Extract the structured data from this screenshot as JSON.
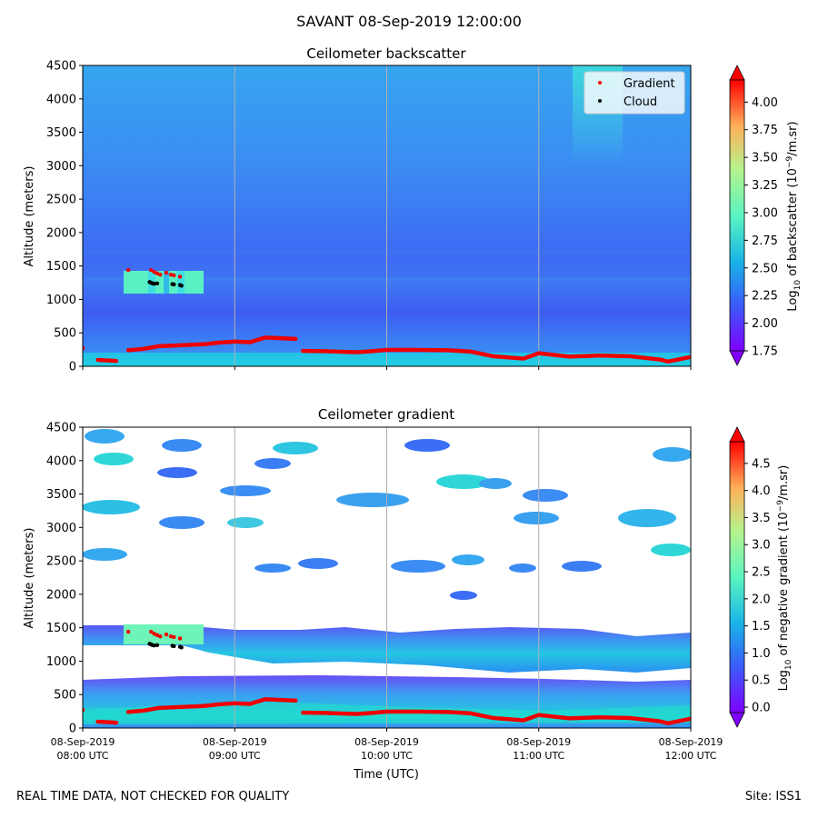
{
  "figure": {
    "suptitle": "SAVANT 08-Sep-2019 12:00:00",
    "footer_left": "REAL TIME DATA, NOT CHECKED FOR QUALITY",
    "footer_right": "Site: ISS1"
  },
  "chart_data": [
    {
      "type": "heatmap",
      "title": "Ceilometer backscatter",
      "ylabel": "Altitude (meters)",
      "xlabel": "",
      "xlim": [
        8.0,
        12.0
      ],
      "ylim": [
        0,
        4500
      ],
      "yticks": [
        0,
        500,
        1000,
        1500,
        2000,
        2500,
        3000,
        3500,
        4000,
        4500
      ],
      "xticks": [
        8,
        9,
        10,
        11,
        12
      ],
      "grid_x": true,
      "colorbar": {
        "label_prefix": "Log",
        "label_sub": "10",
        "label_mid": " of backscatter (10",
        "label_sup": "−9",
        "label_suffix": "/m.sr)",
        "vmin": 1.75,
        "vmax": 4.2,
        "ticks": [
          "1.75",
          "2.00",
          "2.25",
          "2.50",
          "2.75",
          "3.00",
          "3.25",
          "3.50",
          "3.75",
          "4.00"
        ],
        "extend": "both"
      },
      "legend": {
        "placement": "top-right",
        "entries": [
          {
            "label": "Gradient",
            "color": "#ff0000"
          },
          {
            "label": "Cloud",
            "color": "#000000"
          }
        ]
      }
    },
    {
      "type": "heatmap",
      "title": "Ceilometer gradient",
      "ylabel": "Altitude (meters)",
      "xlabel": "Time (UTC)",
      "xlim": [
        8.0,
        12.0
      ],
      "ylim": [
        0,
        4500
      ],
      "yticks": [
        0,
        500,
        1000,
        1500,
        2000,
        2500,
        3000,
        3500,
        4000,
        4500
      ],
      "xticks": [
        8,
        9,
        10,
        11,
        12
      ],
      "xtick_labels": [
        [
          "08-Sep-2019",
          "08:00 UTC"
        ],
        [
          "08-Sep-2019",
          "09:00 UTC"
        ],
        [
          "08-Sep-2019",
          "10:00 UTC"
        ],
        [
          "08-Sep-2019",
          "11:00 UTC"
        ],
        [
          "08-Sep-2019",
          "12:00 UTC"
        ]
      ],
      "grid_x": true,
      "colorbar": {
        "label_prefix": "Log",
        "label_sub": "10",
        "label_mid": " of negative gradient (10",
        "label_sup": "−9",
        "label_suffix": "/m.sr)",
        "vmin": -0.1,
        "vmax": 4.9,
        "ticks": [
          "0.0",
          "0.5",
          "1.0",
          "1.5",
          "2.0",
          "2.5",
          "3.0",
          "3.5",
          "4.0",
          "4.5"
        ],
        "extend": "both"
      }
    }
  ],
  "gradient_series": [
    [
      8.0,
      270
    ],
    [
      8.1,
      95
    ],
    [
      8.22,
      80
    ],
    [
      8.3,
      240
    ],
    [
      8.4,
      260
    ],
    [
      8.5,
      300
    ],
    [
      8.6,
      310
    ],
    [
      8.7,
      320
    ],
    [
      8.8,
      330
    ],
    [
      8.9,
      355
    ],
    [
      9.0,
      370
    ],
    [
      9.1,
      360
    ],
    [
      9.2,
      430
    ],
    [
      9.4,
      410
    ],
    [
      9.45,
      230
    ],
    [
      9.6,
      225
    ],
    [
      9.8,
      210
    ],
    [
      9.9,
      225
    ],
    [
      10.0,
      245
    ],
    [
      10.2,
      245
    ],
    [
      10.4,
      240
    ],
    [
      10.55,
      220
    ],
    [
      10.7,
      150
    ],
    [
      10.9,
      115
    ],
    [
      11.0,
      195
    ],
    [
      11.2,
      145
    ],
    [
      11.4,
      160
    ],
    [
      11.6,
      150
    ],
    [
      11.8,
      100
    ],
    [
      11.85,
      70
    ],
    [
      12.0,
      140
    ]
  ],
  "cloud_points": [
    [
      8.44,
      1260
    ],
    [
      8.45,
      1250
    ],
    [
      8.46,
      1240
    ],
    [
      8.47,
      1235
    ],
    [
      8.49,
      1240
    ],
    [
      8.59,
      1230
    ],
    [
      8.6,
      1225
    ],
    [
      8.64,
      1215
    ],
    [
      8.65,
      1205
    ]
  ],
  "gradient_cloud_points": [
    [
      8.3,
      1440
    ],
    [
      8.45,
      1440
    ],
    [
      8.47,
      1410
    ],
    [
      8.49,
      1390
    ],
    [
      8.51,
      1370
    ],
    [
      8.55,
      1400
    ],
    [
      8.58,
      1370
    ],
    [
      8.6,
      1360
    ],
    [
      8.64,
      1340
    ]
  ]
}
